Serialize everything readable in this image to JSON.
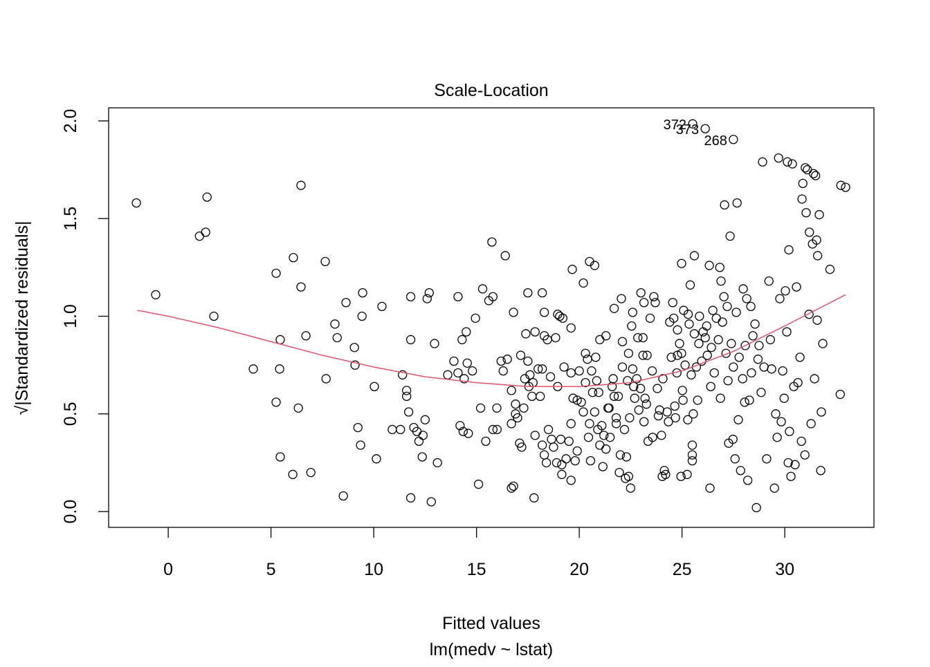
{
  "chart_data": {
    "type": "scatter",
    "title": "Scale-Location",
    "xlabel": "Fitted values",
    "subtitle": "lm(medv ~ lstat)",
    "ylabel": "√|Standardized residuals|",
    "xlim": [
      -2.9,
      34.34
    ],
    "ylim": [
      -0.081,
      2.067
    ],
    "xticks": [
      0,
      5,
      10,
      15,
      20,
      25,
      30
    ],
    "yticks": [
      {
        "value": 0,
        "label": "0.0"
      },
      0.5,
      {
        "value": 1,
        "label": "1.0"
      },
      1.5,
      {
        "value": 2,
        "label": "2.0"
      }
    ],
    "color": "#000000",
    "x": [
      -1.55,
      -0.61,
      1.89,
      1.52,
      1.82,
      2.22,
      4.14,
      5.25,
      5.45,
      5.42,
      5.25,
      5.45,
      6.09,
      6.46,
      6.46,
      6.7,
      6.33,
      6.06,
      6.94,
      7.64,
      7.68,
      8.11,
      8.22,
      8.65,
      8.52,
      9.06,
      9.09,
      9.23,
      9.36,
      9.46,
      9.43,
      10.03,
      10.13,
      10.4,
      10.9,
      11.3,
      11.4,
      11.6,
      11.6,
      11.7,
      11.8,
      11.8,
      11.8,
      11.95,
      12.2,
      12.1,
      12.5,
      12.4,
      12.36,
      12.6,
      12.7,
      12.8,
      12.96,
      13.1,
      13.6,
      13.9,
      14.1,
      14.1,
      14.2,
      14.35,
      14.3,
      14.5,
      14.4,
      14.55,
      14.6,
      14.8,
      14.95,
      15.1,
      15.3,
      15.2,
      15.45,
      15.6,
      15.75,
      15.8,
      15.8,
      15.99,
      16.0,
      16.2,
      16.3,
      16.4,
      16.5,
      16.7,
      16.7,
      16.7,
      16.8,
      16.8,
      16.9,
      16.9,
      17.0,
      17.15,
      17.1,
      17.2,
      17.3,
      17.4,
      17.35,
      17.5,
      17.5,
      17.55,
      17.6,
      17.7,
      17.75,
      17.8,
      17.85,
      17.85,
      18.0,
      18.1,
      18.2,
      18.2,
      18.3,
      18.3,
      18.2,
      18.3,
      18.4,
      18.45,
      18.5,
      18.6,
      18.65,
      18.75,
      18.85,
      18.9,
      18.95,
      18.95,
      19.05,
      19.1,
      19.15,
      19.15,
      19.2,
      19.26,
      19.36,
      19.5,
      19.6,
      19.6,
      19.66,
      19.6,
      19.6,
      19.7,
      19.8,
      19.9,
      19.9,
      20.0,
      20.1,
      20.2,
      20.2,
      20.3,
      20.3,
      20.4,
      20.45,
      20.5,
      20.5,
      20.55,
      20.6,
      20.65,
      20.75,
      20.75,
      20.8,
      20.85,
      20.9,
      20.95,
      21.0,
      21.0,
      21.1,
      21.15,
      21.2,
      21.3,
      21.3,
      21.4,
      21.45,
      21.5,
      21.6,
      21.65,
      21.7,
      21.7,
      21.8,
      21.8,
      21.9,
      21.95,
      22.0,
      22.05,
      22.1,
      22.1,
      22.2,
      22.25,
      22.3,
      22.35,
      22.4,
      22.4,
      22.45,
      22.5,
      22.55,
      22.6,
      22.6,
      22.65,
      22.7,
      22.8,
      22.85,
      22.9,
      22.98,
      23.0,
      23.1,
      23.1,
      23.15,
      23.15,
      23.2,
      23.27,
      23.3,
      23.35,
      23.45,
      23.55,
      23.57,
      23.63,
      23.7,
      23.8,
      23.85,
      23.91,
      24.0,
      24.04,
      24.07,
      24.14,
      24.2,
      24.28,
      24.34,
      24.4,
      24.48,
      24.55,
      24.6,
      24.65,
      24.68,
      24.75,
      24.78,
      24.78,
      24.88,
      24.95,
      24.98,
      24.98,
      25.02,
      25.05,
      25.08,
      25.15,
      25.25,
      25.28,
      25.3,
      25.35,
      25.4,
      25.45,
      25.5,
      25.5,
      25.5,
      25.55,
      25.6,
      25.6,
      25.7,
      25.76,
      25.82,
      25.85,
      25.96,
      26.03,
      26.13,
      26.2,
      26.23,
      26.33,
      26.36,
      26.4,
      26.43,
      26.5,
      26.57,
      26.67,
      26.77,
      26.84,
      26.87,
      26.9,
      26.97,
      27.04,
      27.07,
      27.14,
      27.2,
      27.24,
      27.27,
      27.34,
      27.4,
      27.48,
      27.5,
      27.58,
      27.64,
      27.68,
      27.74,
      27.78,
      27.85,
      27.95,
      27.98,
      28.05,
      28.08,
      28.15,
      28.2,
      28.28,
      28.35,
      28.38,
      28.45,
      28.55,
      28.62,
      28.7,
      28.75,
      28.85,
      28.92,
      28.99,
      29.12,
      29.23,
      29.3,
      29.36,
      29.5,
      29.56,
      29.63,
      29.7,
      29.76,
      29.83,
      29.9,
      29.97,
      30.03,
      30.1,
      30.13,
      30.17,
      30.2,
      30.23,
      30.3,
      30.37,
      30.44,
      30.5,
      30.57,
      30.64,
      30.74,
      30.81,
      30.84,
      30.88,
      30.98,
      31.0,
      31.04,
      31.1,
      31.18,
      31.2,
      31.28,
      31.35,
      31.4,
      31.45,
      31.5,
      31.55,
      31.58,
      31.6,
      31.68,
      31.75,
      31.78,
      31.85,
      32.2,
      32.7,
      32.73,
      32.96,
      25.52,
      26.13,
      27.5
    ],
    "values": [
      1.58,
      1.11,
      1.61,
      1.41,
      1.43,
      1.0,
      0.73,
      1.22,
      0.88,
      0.73,
      0.56,
      0.28,
      1.3,
      1.67,
      1.15,
      0.9,
      0.53,
      0.19,
      0.2,
      1.28,
      0.68,
      0.96,
      0.89,
      1.07,
      0.08,
      0.84,
      0.75,
      0.43,
      0.34,
      1.12,
      1.0,
      0.64,
      0.27,
      1.05,
      0.42,
      0.42,
      0.7,
      0.62,
      0.59,
      0.51,
      1.1,
      0.88,
      0.07,
      0.43,
      0.36,
      0.41,
      0.47,
      0.39,
      0.28,
      1.09,
      1.12,
      0.05,
      0.86,
      0.25,
      0.7,
      0.77,
      0.71,
      1.1,
      0.44,
      0.41,
      0.88,
      0.92,
      0.68,
      0.76,
      0.4,
      0.72,
      0.99,
      0.14,
      1.14,
      0.53,
      0.36,
      1.08,
      1.38,
      1.1,
      0.42,
      0.53,
      0.42,
      0.77,
      0.72,
      1.31,
      0.78,
      0.62,
      0.45,
      0.12,
      0.13,
      1.02,
      0.55,
      0.5,
      0.48,
      0.8,
      0.35,
      0.33,
      0.53,
      0.91,
      0.68,
      0.77,
      1.12,
      0.64,
      0.7,
      0.59,
      0.66,
      0.07,
      0.92,
      0.39,
      0.73,
      0.59,
      0.73,
      1.12,
      1.02,
      0.9,
      0.34,
      0.29,
      0.25,
      0.88,
      0.42,
      0.69,
      0.37,
      0.33,
      0.89,
      0.25,
      1.01,
      0.64,
      1.0,
      0.37,
      0.24,
      0.19,
      0.99,
      0.74,
      0.27,
      0.36,
      0.94,
      0.71,
      1.24,
      0.45,
      0.16,
      0.58,
      0.26,
      0.57,
      0.31,
      0.72,
      0.56,
      1.17,
      0.51,
      0.81,
      0.66,
      0.78,
      0.38,
      0.45,
      1.28,
      0.26,
      0.72,
      0.61,
      1.26,
      0.51,
      0.79,
      0.67,
      0.42,
      0.61,
      0.88,
      0.34,
      0.44,
      0.23,
      0.39,
      0.9,
      0.32,
      0.53,
      0.53,
      0.38,
      0.64,
      0.68,
      1.04,
      0.59,
      0.48,
      0.45,
      0.59,
      0.2,
      0.29,
      1.09,
      0.87,
      0.74,
      0.42,
      0.17,
      0.28,
      0.67,
      0.18,
      0.81,
      0.48,
      0.12,
      0.95,
      1.02,
      0.73,
      0.64,
      0.58,
      0.68,
      0.89,
      0.52,
      0.63,
      1.12,
      0.89,
      0.8,
      1.07,
      0.46,
      0.58,
      0.55,
      0.8,
      0.36,
      0.99,
      0.72,
      0.38,
      1.1,
      1.07,
      0.63,
      0.49,
      0.52,
      0.39,
      0.18,
      0.68,
      0.21,
      0.19,
      0.51,
      0.46,
      0.97,
      0.79,
      1.07,
      0.99,
      0.54,
      0.48,
      0.71,
      0.93,
      0.8,
      0.86,
      0.18,
      1.27,
      0.81,
      0.62,
      0.57,
      1.03,
      0.75,
      0.19,
      0.47,
      1.01,
      0.96,
      1.16,
      0.7,
      0.34,
      0.29,
      0.26,
      0.5,
      1.31,
      0.91,
      0.74,
      0.57,
      0.86,
      1.0,
      0.77,
      0.92,
      0.89,
      0.95,
      0.8,
      1.26,
      0.12,
      0.64,
      0.84,
      1.03,
      0.71,
      0.99,
      0.88,
      1.25,
      0.58,
      1.18,
      0.97,
      1.1,
      1.57,
      0.81,
      1.05,
      0.67,
      0.35,
      1.41,
      0.86,
      0.37,
      0.74,
      0.27,
      1.02,
      1.58,
      0.47,
      0.79,
      0.21,
      0.68,
      1.14,
      0.56,
      0.85,
      1.09,
      0.16,
      0.57,
      1.05,
      0.71,
      0.9,
      0.96,
      0.02,
      0.78,
      0.85,
      0.61,
      1.79,
      0.74,
      0.27,
      1.18,
      0.88,
      0.73,
      0.12,
      0.5,
      0.38,
      1.81,
      1.09,
      0.46,
      0.72,
      0.58,
      1.13,
      0.92,
      1.79,
      0.25,
      1.34,
      0.41,
      0.18,
      1.78,
      0.64,
      0.24,
      1.15,
      0.66,
      0.79,
      0.36,
      1.6,
      1.68,
      0.29,
      1.76,
      1.53,
      1.75,
      1.01,
      1.43,
      0.45,
      1.37,
      1.73,
      0.68,
      1.72,
      1.39,
      0.98,
      1.31,
      1.52,
      0.21,
      0.51,
      0.86,
      1.24,
      0.6,
      1.67,
      1.66,
      1.985,
      1.96,
      1.905
    ],
    "smooth": {
      "color": "#DF536B",
      "x": [
        -1.5,
        0,
        2.5,
        5,
        7.5,
        10,
        12.5,
        15,
        17.5,
        20,
        22.5,
        25,
        27.5,
        30,
        32.96
      ],
      "values": [
        1.03,
        1.0,
        0.94,
        0.87,
        0.8,
        0.74,
        0.69,
        0.66,
        0.64,
        0.64,
        0.66,
        0.72,
        0.82,
        0.95,
        1.11
      ]
    },
    "annotations": [
      {
        "text": "372",
        "x": 25.52,
        "y": 1.985
      },
      {
        "text": "373",
        "x": 26.13,
        "y": 1.96
      },
      {
        "text": "268",
        "x": 27.5,
        "y": 1.905
      }
    ]
  }
}
